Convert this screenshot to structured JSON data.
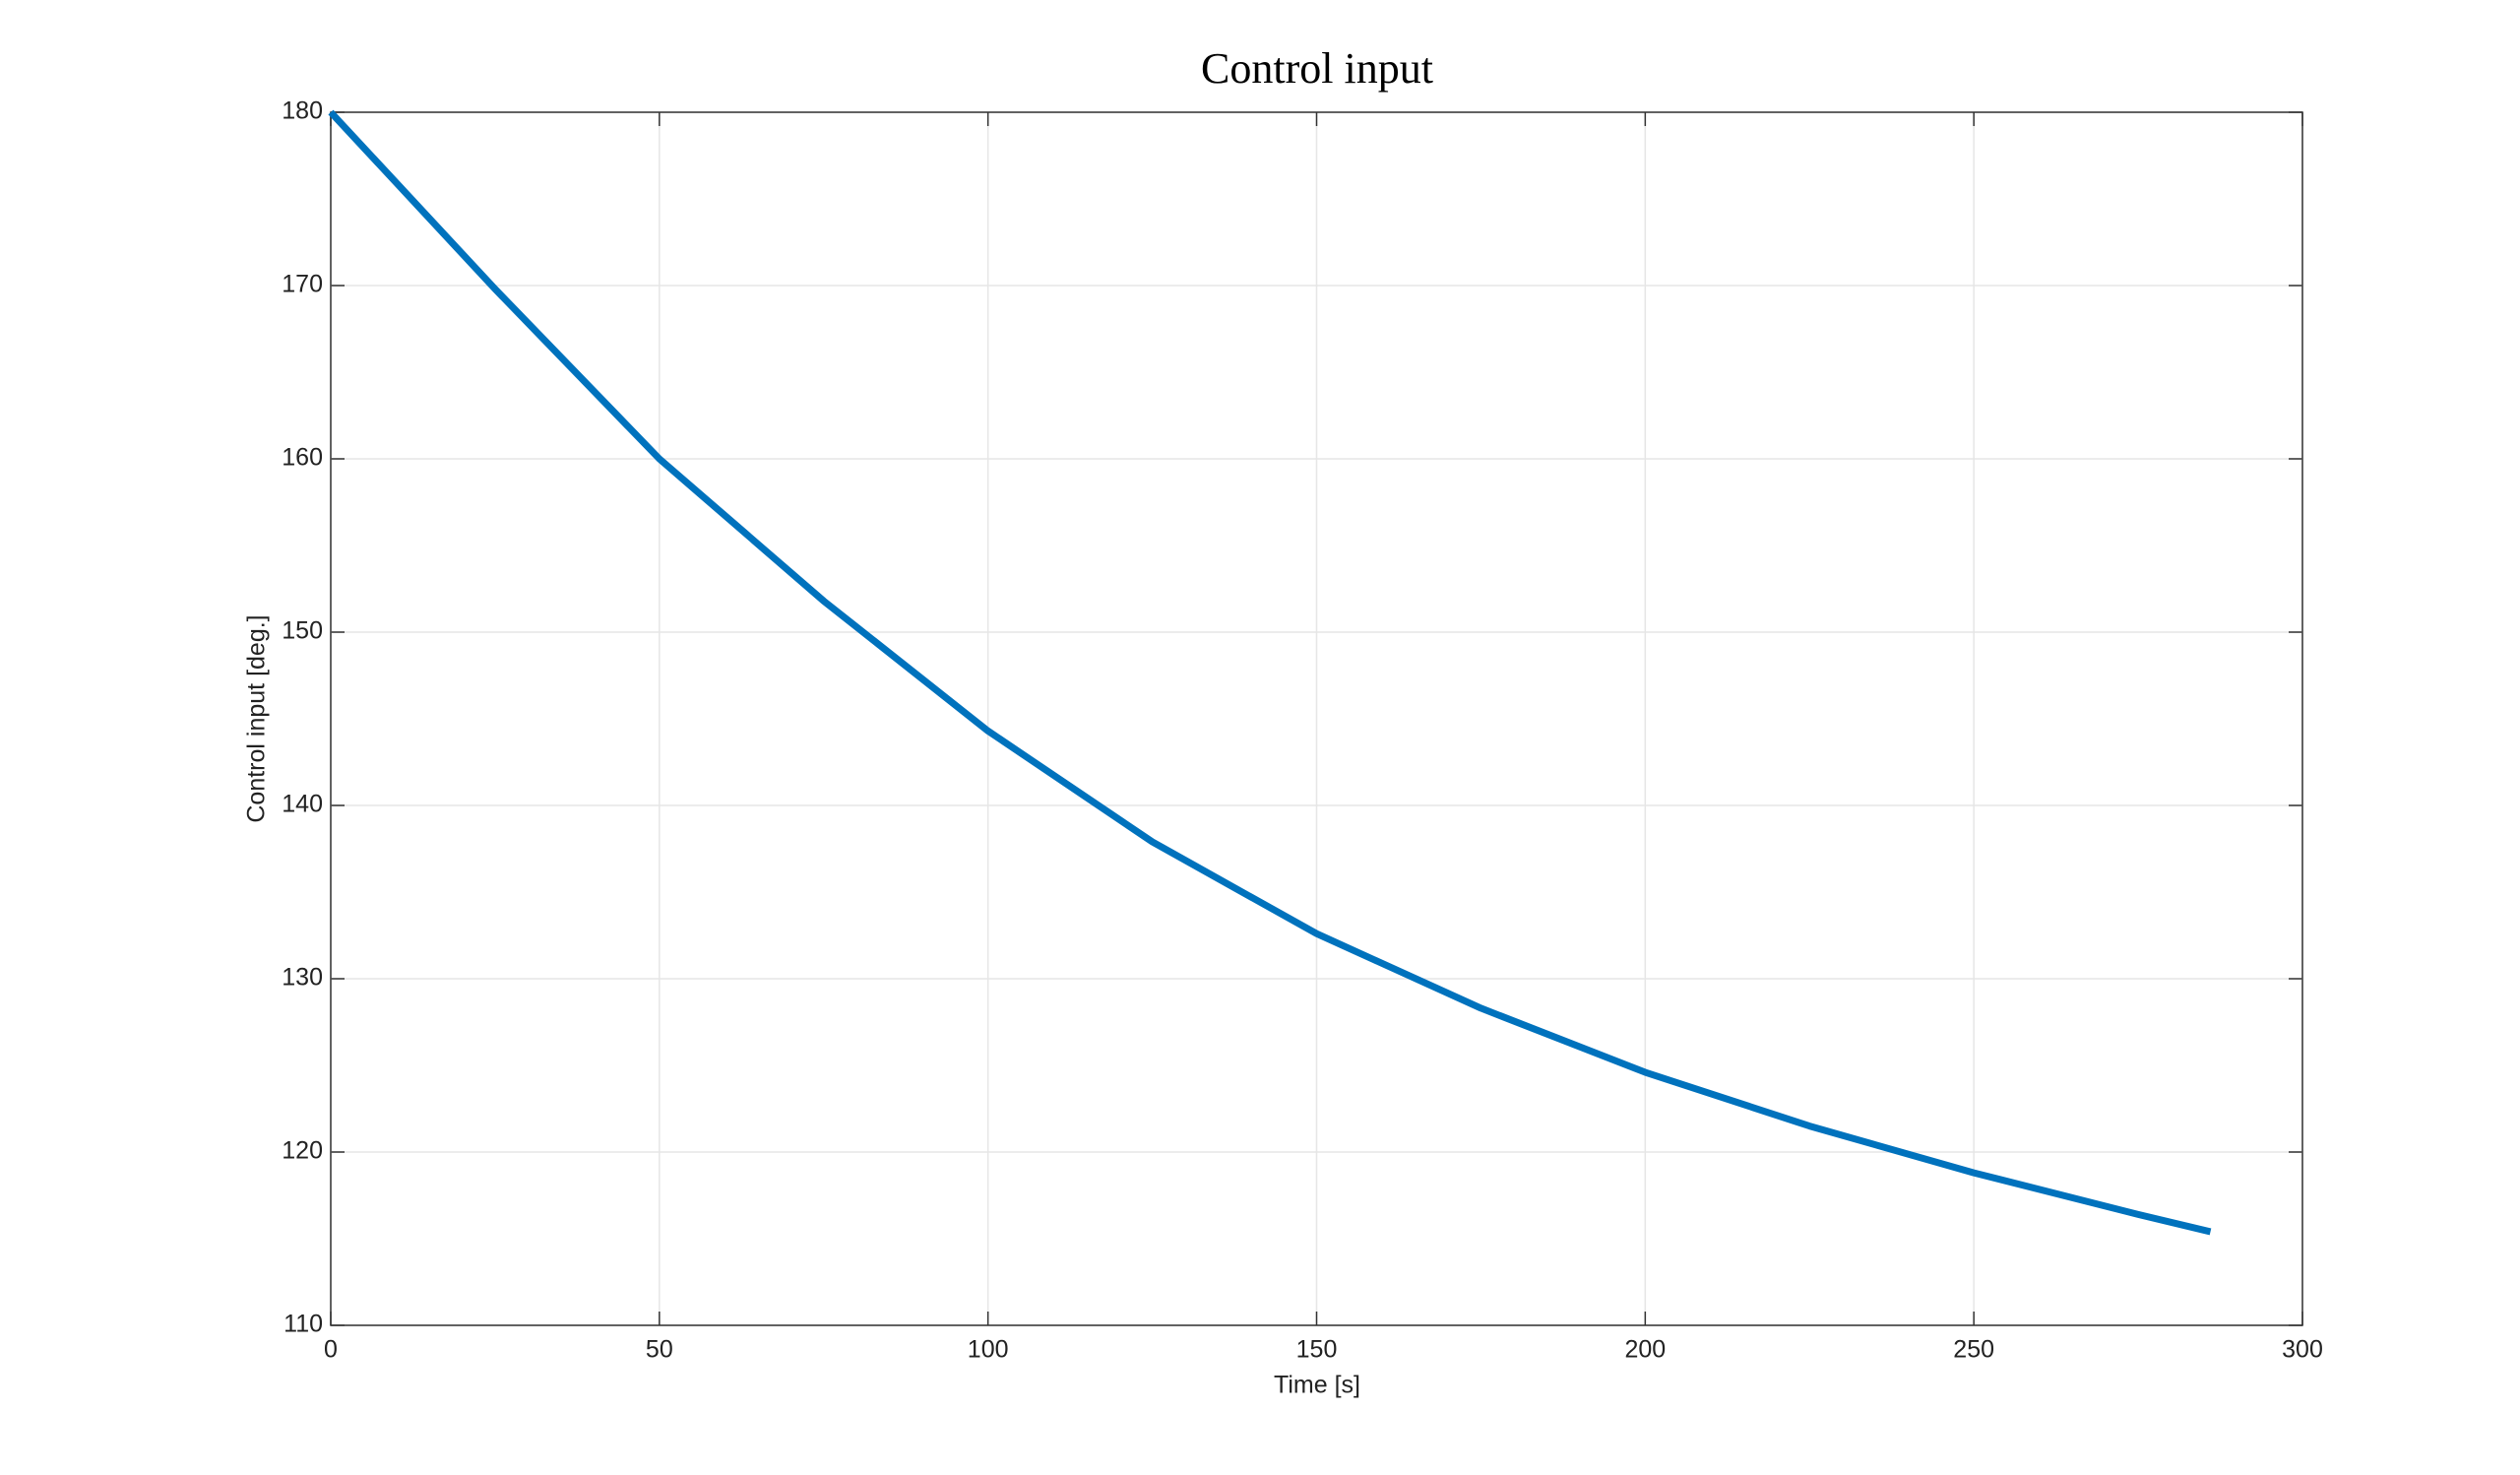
{
  "chart_data": {
    "type": "line",
    "title": "Control input",
    "xlabel": "Time [s]",
    "ylabel": "Control input [deg.]",
    "x": [
      0,
      25,
      50,
      75,
      100,
      125,
      150,
      175,
      200,
      225,
      250,
      275,
      286
    ],
    "series": [
      {
        "color": "#0072bd",
        "values": [
          180,
          169.8,
          160,
          151.8,
          144.3,
          137.9,
          132.6,
          128.3,
          124.6,
          121.5,
          118.8,
          116.4,
          115.4
        ]
      }
    ],
    "xlim": [
      0,
      300
    ],
    "xticks": [
      0,
      50,
      100,
      150,
      200,
      250,
      300
    ],
    "ylim": [
      110,
      180
    ],
    "yticks": [
      110,
      120,
      130,
      140,
      150,
      160,
      170,
      180
    ],
    "grid": true
  }
}
